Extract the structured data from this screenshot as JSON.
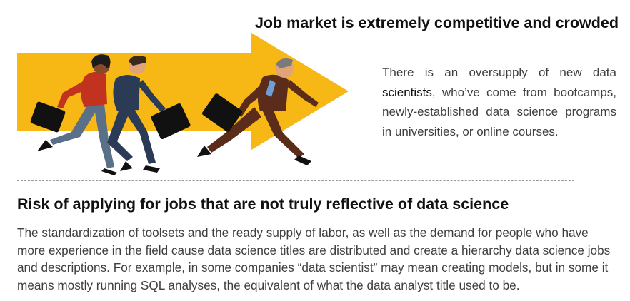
{
  "section1": {
    "title": "Job market is extremely competitive and crowded",
    "text_lead": "There is an oversupply of new data ",
    "text_highlight": "scientists",
    "text_rest": ", who’ve come from bootcamps, newly-established data science programs in universities, or online courses."
  },
  "section2": {
    "title": "Risk of applying for jobs that are not truly reflective of data science",
    "text": "The standardization of toolsets and the ready supply of labor, as well as the demand for people who have more experience in the field cause data science titles are distributed and create a hierarchy data science jobs and descriptions. For example, in some companies “data scientist” may mean creating models, but in some it means mostly running SQL analyses, the equivalent of what the data analyst title used to be."
  },
  "illustration": {
    "arrow_color": "#f7b715",
    "icon": "businesspeople-racing-arrow-icon"
  }
}
